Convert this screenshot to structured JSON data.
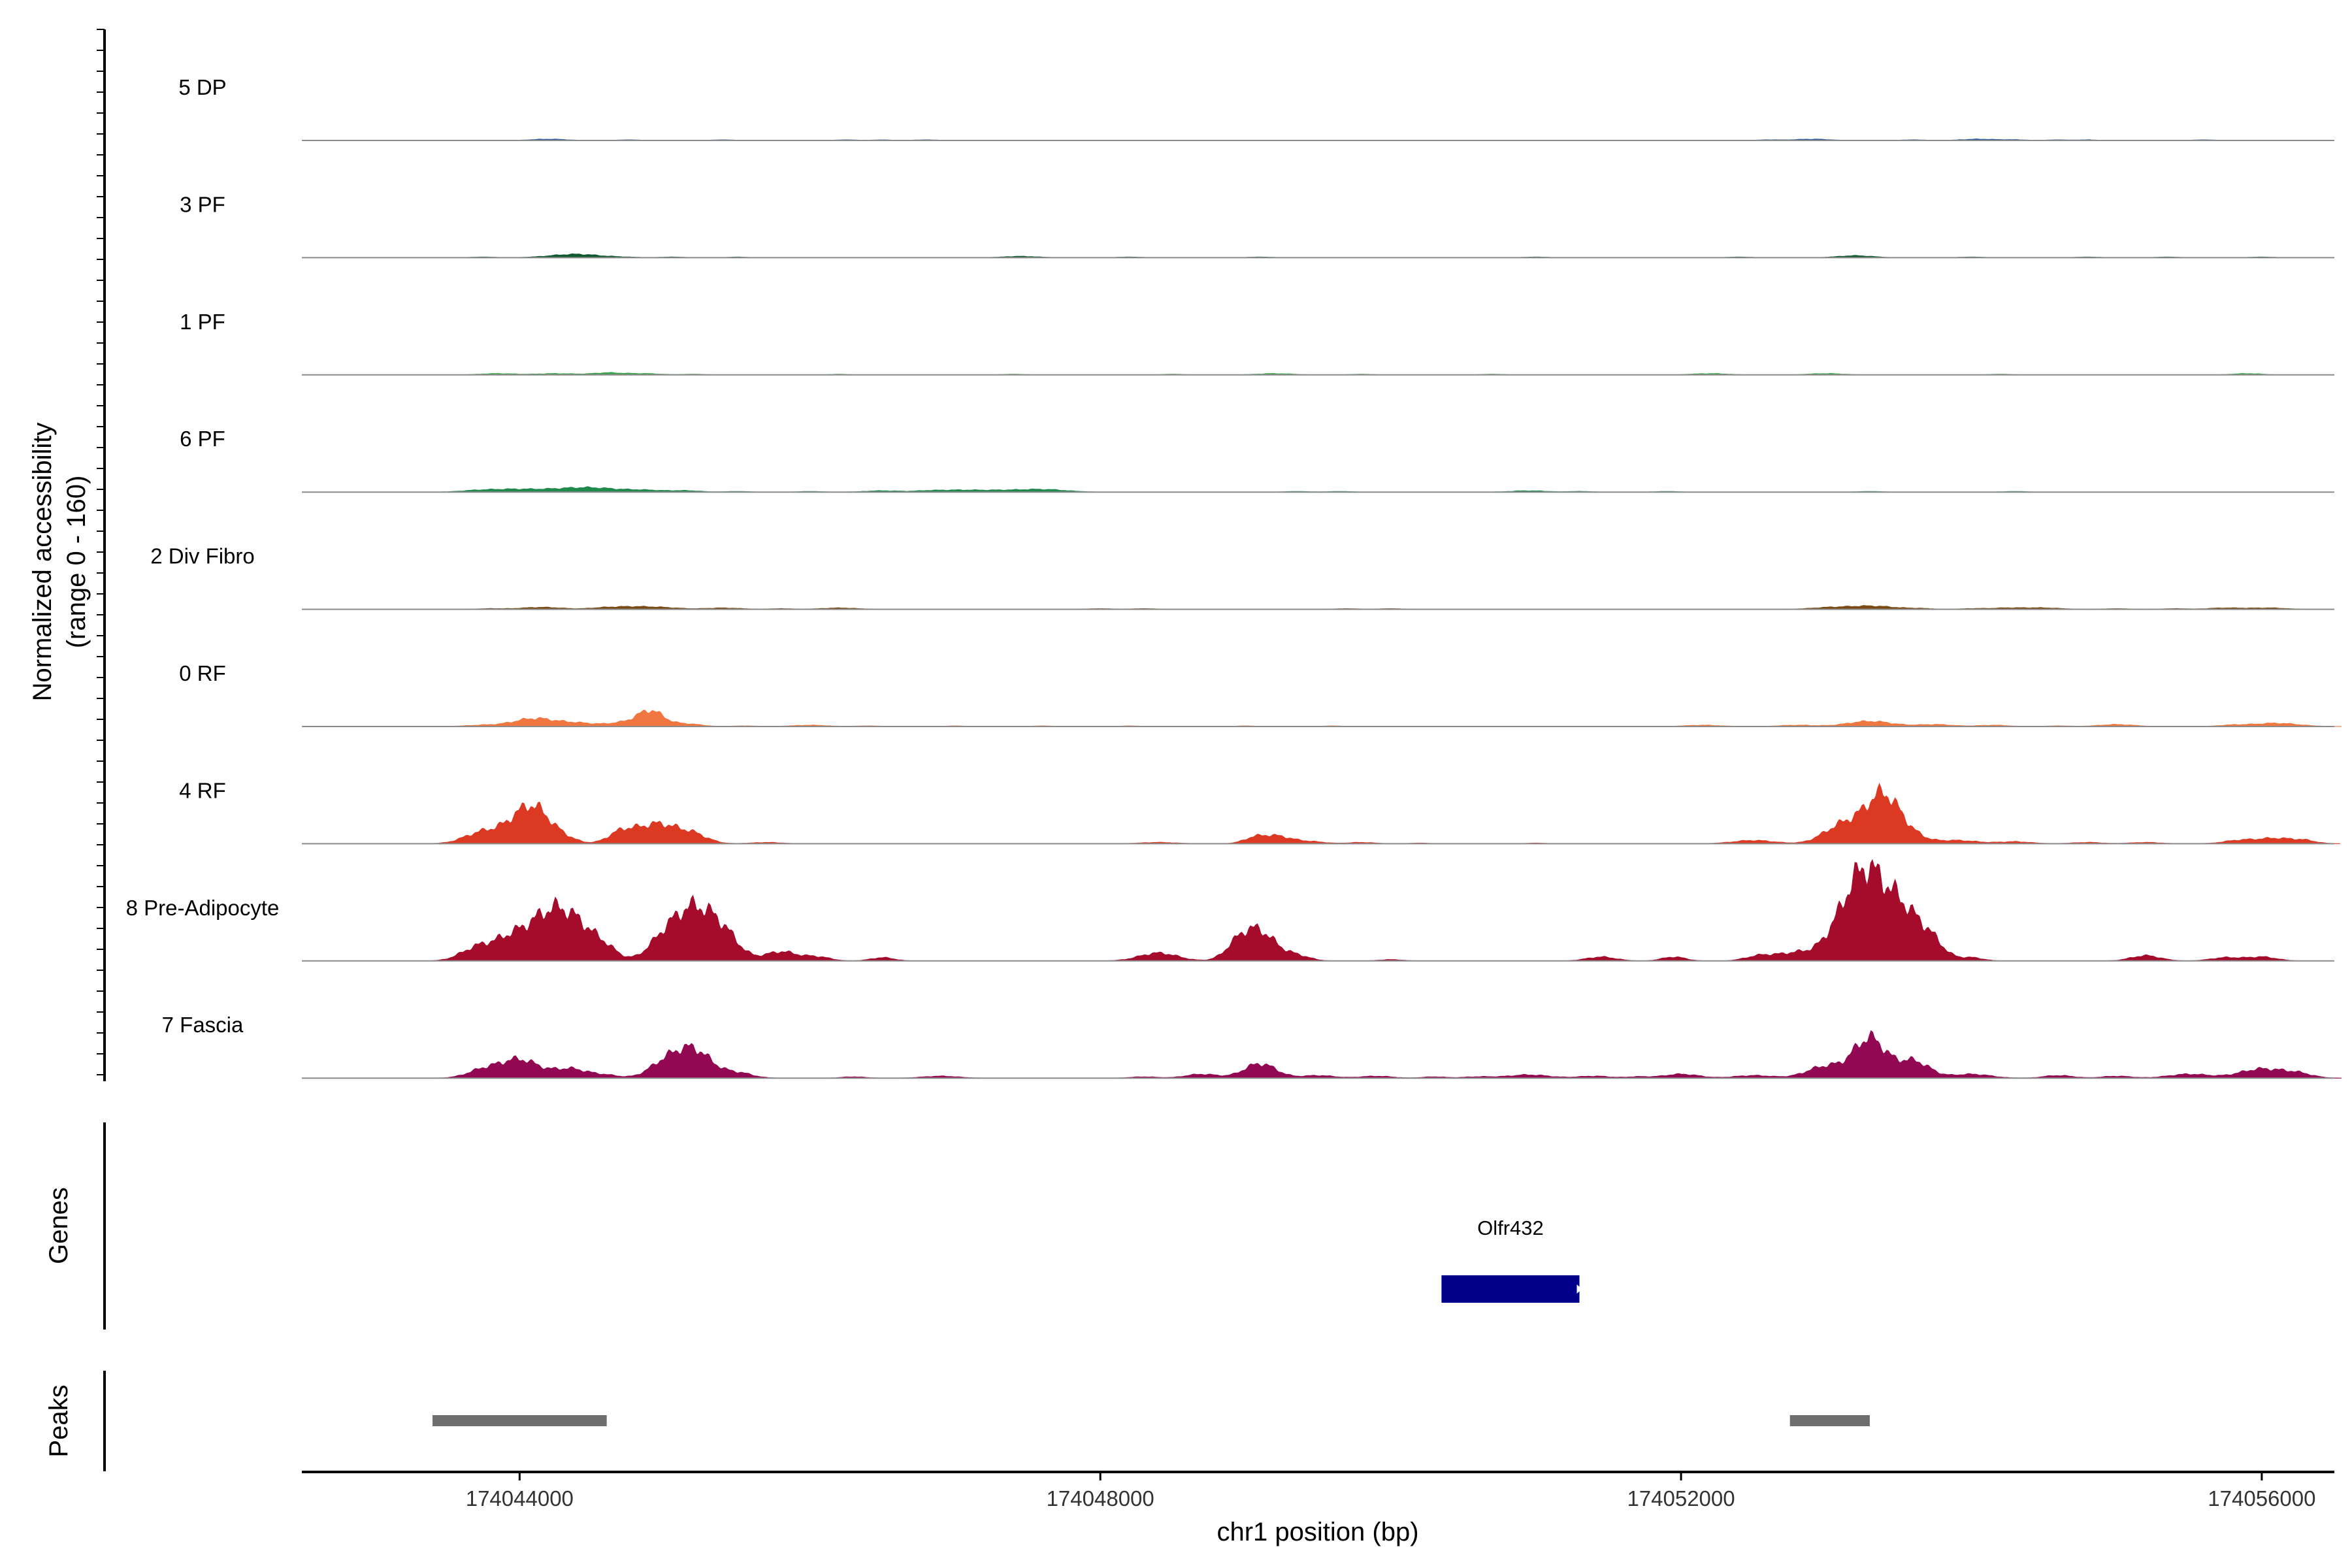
{
  "chart_data": {
    "type": "area",
    "xlabel": "chr1 position (bp)",
    "ylabel": "Normalized accessibility",
    "ylabel_sub": "(range 0 - 160)",
    "ylim": [
      0,
      160
    ],
    "xlim": [
      174042500,
      174056500
    ],
    "x_ticks": [
      174044000,
      174048000,
      174052000,
      174056000
    ],
    "x_tick_labels": [
      "174044000",
      "174048000",
      "174052000",
      "174056000"
    ],
    "grid": false,
    "legend": "none",
    "baseline_color": "#8c8c8c",
    "tracks": [
      {
        "name": "5 DP",
        "color": "#2b5a9e",
        "peaks": [
          [
            174043750,
            0,
            0
          ],
          [
            174044200,
            2,
            120
          ],
          [
            174044750,
            1,
            80
          ],
          [
            174045400,
            1,
            80
          ],
          [
            174046250,
            1,
            80
          ],
          [
            174046500,
            1,
            60
          ],
          [
            174046800,
            1,
            80
          ],
          [
            174052600,
            1,
            80
          ],
          [
            174052900,
            2,
            120
          ],
          [
            174053600,
            1,
            80
          ],
          [
            174054050,
            2,
            120
          ],
          [
            174054300,
            1,
            80
          ],
          [
            174054600,
            1,
            80
          ],
          [
            174054800,
            1,
            60
          ],
          [
            174055600,
            1,
            80
          ],
          [
            174056050,
            0,
            0
          ]
        ]
      },
      {
        "name": "3 PF",
        "color": "#0f5a32",
        "peaks": [
          [
            174043750,
            1,
            80
          ],
          [
            174044300,
            3,
            150
          ],
          [
            174044450,
            3,
            130
          ],
          [
            174044700,
            1,
            100
          ],
          [
            174045050,
            1,
            80
          ],
          [
            174045500,
            1,
            60
          ],
          [
            174047450,
            2,
            120
          ],
          [
            174048200,
            1,
            80
          ],
          [
            174049100,
            1,
            80
          ],
          [
            174051000,
            1,
            80
          ],
          [
            174052400,
            1,
            80
          ],
          [
            174053200,
            3,
            120
          ],
          [
            174054000,
            1,
            80
          ],
          [
            174054800,
            1,
            80
          ],
          [
            174055350,
            1,
            80
          ],
          [
            174056000,
            1,
            80
          ]
        ]
      },
      {
        "name": "1 PF",
        "color": "#3fa34d",
        "peaks": [
          [
            174043850,
            2,
            120
          ],
          [
            174044250,
            2,
            130
          ],
          [
            174044600,
            3,
            100
          ],
          [
            174044850,
            2,
            120
          ],
          [
            174045200,
            1,
            80
          ],
          [
            174046200,
            1,
            60
          ],
          [
            174047400,
            1,
            80
          ],
          [
            174048500,
            1,
            80
          ],
          [
            174049200,
            2,
            120
          ],
          [
            174049800,
            1,
            80
          ],
          [
            174050700,
            1,
            80
          ],
          [
            174052200,
            2,
            120
          ],
          [
            174053000,
            2,
            120
          ],
          [
            174054200,
            1,
            80
          ],
          [
            174055900,
            2,
            100
          ]
        ]
      },
      {
        "name": "6 PF",
        "color": "#1e8a4b",
        "peaks": [
          [
            174043700,
            2,
            120
          ],
          [
            174043950,
            4,
            160
          ],
          [
            174044250,
            3,
            150
          ],
          [
            174044500,
            6,
            160
          ],
          [
            174044850,
            3,
            140
          ],
          [
            174045150,
            2,
            100
          ],
          [
            174045500,
            1,
            80
          ],
          [
            174046000,
            1,
            80
          ],
          [
            174046500,
            2,
            120
          ],
          [
            174046800,
            1,
            80
          ],
          [
            174047000,
            3,
            160
          ],
          [
            174047300,
            2,
            140
          ],
          [
            174047600,
            4,
            160
          ],
          [
            174049350,
            1,
            80
          ],
          [
            174049650,
            1,
            80
          ],
          [
            174050950,
            2,
            120
          ],
          [
            174051300,
            1,
            80
          ],
          [
            174051900,
            1,
            80
          ],
          [
            174053300,
            1,
            80
          ],
          [
            174054300,
            1,
            80
          ]
        ]
      },
      {
        "name": "2 Div Fibro",
        "color": "#7a4a12",
        "peaks": [
          [
            174043800,
            1,
            80
          ],
          [
            174044150,
            3,
            140
          ],
          [
            174044550,
            1,
            80
          ],
          [
            174044750,
            4,
            150
          ],
          [
            174045000,
            2,
            120
          ],
          [
            174045400,
            2,
            120
          ],
          [
            174045800,
            1,
            80
          ],
          [
            174046200,
            2,
            120
          ],
          [
            174048000,
            1,
            80
          ],
          [
            174048300,
            1,
            80
          ],
          [
            174049700,
            1,
            80
          ],
          [
            174050000,
            1,
            80
          ],
          [
            174053000,
            2,
            120
          ],
          [
            174053300,
            5,
            170
          ],
          [
            174053650,
            1,
            80
          ],
          [
            174054000,
            1,
            80
          ],
          [
            174054250,
            2,
            120
          ],
          [
            174054500,
            2,
            120
          ],
          [
            174055000,
            1,
            80
          ],
          [
            174055400,
            1,
            80
          ],
          [
            174055750,
            2,
            120
          ],
          [
            174056050,
            2,
            120
          ]
        ]
      },
      {
        "name": "0 RF",
        "color": "#f07840",
        "peaks": [
          [
            174043750,
            2,
            120
          ],
          [
            174044100,
            12,
            140
          ],
          [
            174044400,
            5,
            130
          ],
          [
            174044700,
            5,
            100
          ],
          [
            174044900,
            24,
            90
          ],
          [
            174045150,
            4,
            100
          ],
          [
            174045550,
            1,
            80
          ],
          [
            174046000,
            2,
            120
          ],
          [
            174046400,
            1,
            80
          ],
          [
            174047000,
            1,
            60
          ],
          [
            174047600,
            1,
            60
          ],
          [
            174048200,
            1,
            60
          ],
          [
            174049000,
            1,
            60
          ],
          [
            174049600,
            1,
            60
          ],
          [
            174052150,
            2,
            120
          ],
          [
            174052800,
            2,
            120
          ],
          [
            174053300,
            8,
            150
          ],
          [
            174053750,
            3,
            120
          ],
          [
            174054150,
            2,
            100
          ],
          [
            174054600,
            1,
            80
          ],
          [
            174055000,
            3,
            120
          ],
          [
            174055800,
            2,
            100
          ],
          [
            174056100,
            5,
            150
          ]
        ]
      },
      {
        "name": "4 RF",
        "color": "#dc3923",
        "peaks": [
          [
            174043700,
            10,
            110
          ],
          [
            174043950,
            24,
            160
          ],
          [
            174044100,
            42,
            110
          ],
          [
            174044300,
            8,
            90
          ],
          [
            174044700,
            16,
            90
          ],
          [
            174044950,
            30,
            140
          ],
          [
            174045200,
            12,
            100
          ],
          [
            174045700,
            2,
            100
          ],
          [
            174048400,
            2,
            120
          ],
          [
            174049050,
            6,
            70
          ],
          [
            174049200,
            12,
            110
          ],
          [
            174049450,
            3,
            100
          ],
          [
            174049800,
            2,
            90
          ],
          [
            174050200,
            1,
            60
          ],
          [
            174051000,
            1,
            60
          ],
          [
            174052500,
            5,
            140
          ],
          [
            174053050,
            12,
            110
          ],
          [
            174053250,
            34,
            150
          ],
          [
            174053400,
            50,
            100
          ],
          [
            174053550,
            16,
            110
          ],
          [
            174053900,
            5,
            140
          ],
          [
            174054300,
            3,
            110
          ],
          [
            174054800,
            2,
            100
          ],
          [
            174055200,
            2,
            100
          ],
          [
            174055850,
            5,
            110
          ],
          [
            174056100,
            8,
            120
          ],
          [
            174056300,
            4,
            80
          ]
        ]
      },
      {
        "name": "8 Pre-Adipocyte",
        "color": "#a50b2a",
        "peaks": [
          [
            174043700,
            18,
            110
          ],
          [
            174043950,
            34,
            130
          ],
          [
            174044200,
            56,
            130
          ],
          [
            174044400,
            48,
            140
          ],
          [
            174044600,
            10,
            80
          ],
          [
            174045000,
            34,
            110
          ],
          [
            174045200,
            70,
            120
          ],
          [
            174045400,
            40,
            110
          ],
          [
            174045800,
            14,
            110
          ],
          [
            174046050,
            6,
            90
          ],
          [
            174046500,
            5,
            80
          ],
          [
            174048400,
            12,
            130
          ],
          [
            174048950,
            22,
            90
          ],
          [
            174049100,
            42,
            110
          ],
          [
            174049350,
            8,
            90
          ],
          [
            174050000,
            2,
            80
          ],
          [
            174051450,
            6,
            100
          ],
          [
            174051950,
            6,
            80
          ],
          [
            174052550,
            8,
            100
          ],
          [
            174052800,
            12,
            120
          ],
          [
            174053150,
            70,
            130
          ],
          [
            174053300,
            92,
            110
          ],
          [
            174053500,
            74,
            110
          ],
          [
            174053700,
            36,
            100
          ],
          [
            174054000,
            5,
            80
          ],
          [
            174055200,
            8,
            100
          ],
          [
            174055750,
            5,
            100
          ],
          [
            174056000,
            6,
            100
          ]
        ]
      },
      {
        "name": "7 Fascia",
        "color": "#930853",
        "peaks": [
          [
            174043750,
            12,
            110
          ],
          [
            174044000,
            28,
            130
          ],
          [
            174044350,
            14,
            120
          ],
          [
            174044600,
            4,
            90
          ],
          [
            174045000,
            22,
            110
          ],
          [
            174045200,
            42,
            120
          ],
          [
            174045500,
            8,
            100
          ],
          [
            174046300,
            2,
            80
          ],
          [
            174046900,
            3,
            120
          ],
          [
            174048300,
            2,
            90
          ],
          [
            174048700,
            6,
            110
          ],
          [
            174049100,
            22,
            110
          ],
          [
            174049500,
            4,
            110
          ],
          [
            174049900,
            3,
            110
          ],
          [
            174050300,
            2,
            80
          ],
          [
            174050600,
            2,
            100
          ],
          [
            174050950,
            5,
            140
          ],
          [
            174051400,
            3,
            110
          ],
          [
            174051700,
            2,
            80
          ],
          [
            174052000,
            6,
            120
          ],
          [
            174052500,
            4,
            130
          ],
          [
            174053000,
            18,
            130
          ],
          [
            174053300,
            60,
            110
          ],
          [
            174053600,
            26,
            110
          ],
          [
            174054000,
            6,
            130
          ],
          [
            174054600,
            4,
            100
          ],
          [
            174055000,
            3,
            100
          ],
          [
            174055500,
            6,
            140
          ],
          [
            174056000,
            14,
            150
          ],
          [
            174056250,
            6,
            100
          ]
        ]
      }
    ],
    "genes_label": "Genes",
    "genes": [
      {
        "name": "Olfr432",
        "start": 174050350,
        "end": 174051300,
        "strand": "+",
        "color": "#00008b"
      }
    ],
    "peaks_label": "Peaks",
    "peak_regions": [
      {
        "start": 174043400,
        "end": 174044600
      },
      {
        "start": 174052750,
        "end": 174053300
      }
    ]
  }
}
